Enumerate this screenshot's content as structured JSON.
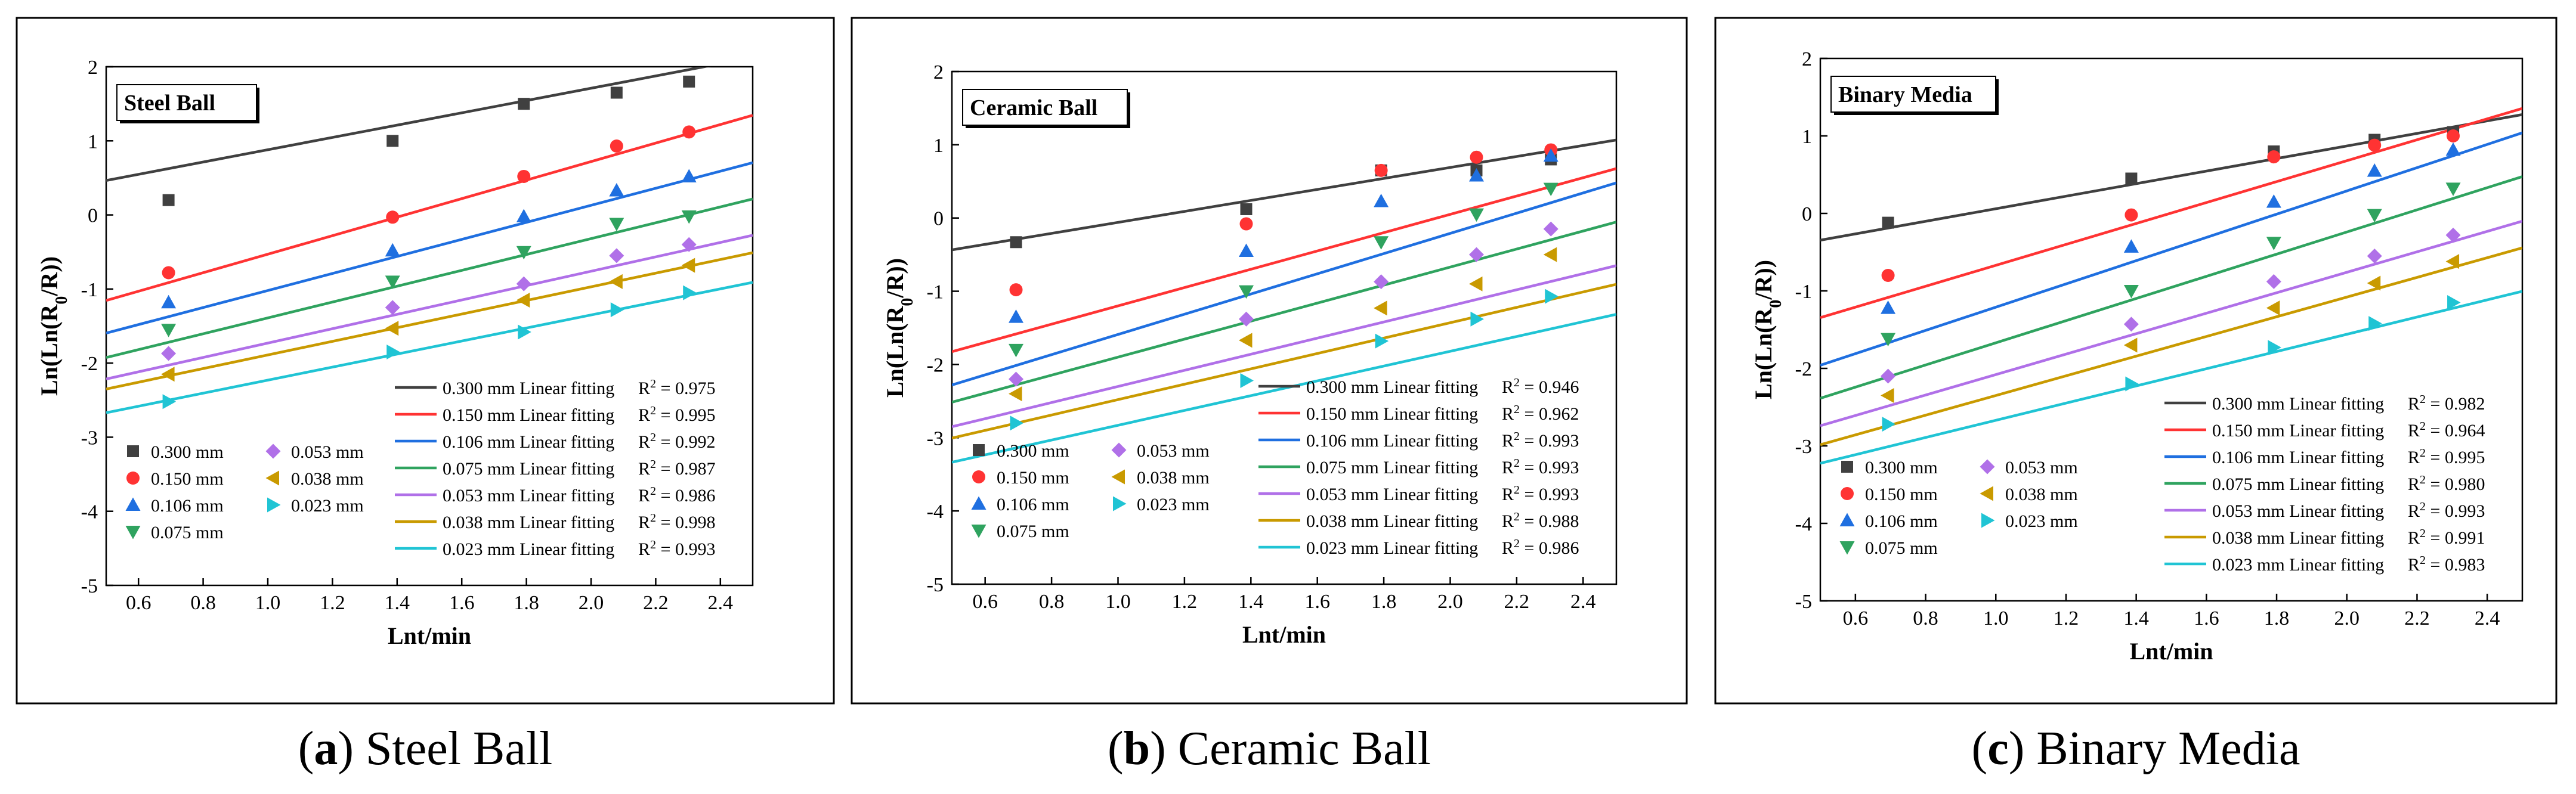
{
  "figure": {
    "panels_caption": [
      {
        "letter": "a",
        "text": " Steel Ball"
      },
      {
        "letter": "b",
        "text": " Ceramic Ball"
      },
      {
        "letter": "c",
        "text": " Binary Media"
      }
    ]
  },
  "colors": {
    "0.300": "#404040",
    "0.150": "#ff3333",
    "0.106": "#1f6fe0",
    "0.075": "#2fa35f",
    "0.053": "#b070e8",
    "0.038": "#c99a00",
    "0.023": "#20c4d4"
  },
  "chart_data": [
    {
      "type": "scatter",
      "title": "Steel Ball",
      "xlabel": "Lnt/min",
      "ylabel": "Ln(Ln(R0/R))",
      "xlim": [
        0.5,
        2.5
      ],
      "ylim": [
        -5,
        2
      ],
      "xticks": [
        "0.6",
        "0.8",
        "1.0",
        "1.2",
        "1.4",
        "1.6",
        "1.8",
        "2.0",
        "2.2",
        "2.4"
      ],
      "yticks": [
        "2",
        "1",
        "0",
        "-1",
        "-2",
        "-3",
        "-4",
        "-5"
      ],
      "x": [
        0.693,
        1.386,
        1.792,
        2.079,
        2.303
      ],
      "series": [
        {
          "name": "0.300 mm",
          "marker": "square",
          "values": [
            0.2,
            1.0,
            1.5,
            1.65,
            1.8
          ],
          "fit": [
            0.05,
            0.83
          ],
          "r2": "0.975"
        },
        {
          "name": "0.150 mm",
          "marker": "circle",
          "values": [
            -0.78,
            -0.03,
            0.52,
            0.93,
            1.12
          ],
          "fit": [
            -1.78,
            1.25
          ],
          "r2": "0.995"
        },
        {
          "name": "0.106 mm",
          "marker": "triangle-up",
          "values": [
            -1.18,
            -0.48,
            -0.02,
            0.33,
            0.52
          ],
          "fit": [
            -2.17,
            1.15
          ],
          "r2": "0.992"
        },
        {
          "name": "0.075 mm",
          "marker": "triangle-down",
          "values": [
            -1.55,
            -0.9,
            -0.5,
            -0.12,
            -0.02
          ],
          "fit": [
            -2.46,
            1.07
          ],
          "r2": "0.987"
        },
        {
          "name": "0.053 mm",
          "marker": "diamond",
          "values": [
            -1.87,
            -1.25,
            -0.93,
            -0.55,
            -0.4
          ],
          "fit": [
            -2.7,
            0.97
          ],
          "r2": "0.986"
        },
        {
          "name": "0.038 mm",
          "marker": "triangle-left",
          "values": [
            -2.15,
            -1.53,
            -1.15,
            -0.9,
            -0.68
          ],
          "fit": [
            -2.81,
            0.92
          ],
          "r2": "0.998"
        },
        {
          "name": "0.023 mm",
          "marker": "triangle-right",
          "values": [
            -2.52,
            -1.85,
            -1.58,
            -1.28,
            -1.05
          ],
          "fit": [
            -3.11,
            0.88
          ],
          "r2": "0.993"
        }
      ],
      "legend_title_suffix": " Linear fitting"
    },
    {
      "type": "scatter",
      "title": "Ceramic Ball",
      "xlabel": "Lnt/min",
      "ylabel": "Ln(Ln(R0/R))",
      "xlim": [
        0.5,
        2.5
      ],
      "ylim": [
        -5,
        2
      ],
      "xticks": [
        "0.6",
        "0.8",
        "1.0",
        "1.2",
        "1.4",
        "1.6",
        "1.8",
        "2.0",
        "2.2",
        "2.4"
      ],
      "yticks": [
        "2",
        "1",
        "0",
        "-1",
        "-2",
        "-3",
        "-4",
        "-5"
      ],
      "x": [
        0.693,
        1.386,
        1.792,
        2.079,
        2.303
      ],
      "series": [
        {
          "name": "0.300 mm",
          "marker": "square",
          "values": [
            -0.33,
            0.12,
            0.65,
            0.65,
            0.8
          ],
          "fit": [
            -0.81,
            0.75
          ],
          "r2": "0.946"
        },
        {
          "name": "0.150 mm",
          "marker": "circle",
          "values": [
            -0.98,
            -0.08,
            0.65,
            0.83,
            0.93
          ],
          "fit": [
            -2.45,
            1.25
          ],
          "r2": "0.962"
        },
        {
          "name": "0.106 mm",
          "marker": "triangle-up",
          "values": [
            -1.35,
            -0.45,
            0.23,
            0.58,
            0.85
          ],
          "fit": [
            -2.97,
            1.38
          ],
          "r2": "0.993"
        },
        {
          "name": "0.075 mm",
          "marker": "triangle-down",
          "values": [
            -1.8,
            -1.0,
            -0.33,
            0.05,
            0.4
          ],
          "fit": [
            -3.13,
            1.23
          ],
          "r2": "0.993"
        },
        {
          "name": "0.053 mm",
          "marker": "diamond",
          "values": [
            -2.2,
            -1.38,
            -0.87,
            -0.5,
            -0.15
          ],
          "fit": [
            -3.4,
            1.1
          ],
          "r2": "0.993"
        },
        {
          "name": "0.038 mm",
          "marker": "triangle-left",
          "values": [
            -2.4,
            -1.67,
            -1.23,
            -0.9,
            -0.5
          ],
          "fit": [
            -3.53,
            1.05
          ],
          "r2": "0.988"
        },
        {
          "name": "0.023 mm",
          "marker": "triangle-right",
          "values": [
            -2.8,
            -2.22,
            -1.68,
            -1.38,
            -1.07
          ],
          "fit": [
            -3.84,
            1.01
          ],
          "r2": "0.986"
        }
      ],
      "legend_title_suffix": " Linear fitting"
    },
    {
      "type": "scatter",
      "title": "Binary Media",
      "xlabel": "Lnt/min",
      "ylabel": "Ln(Ln(R0/R))",
      "xlim": [
        0.5,
        2.5
      ],
      "ylim": [
        -5,
        2
      ],
      "xticks": [
        "0.6",
        "0.8",
        "1.0",
        "1.2",
        "1.4",
        "1.6",
        "1.8",
        "2.0",
        "2.2",
        "2.4"
      ],
      "yticks": [
        "2",
        "1",
        "0",
        "-1",
        "-2",
        "-3",
        "-4",
        "-5"
      ],
      "x": [
        0.693,
        1.386,
        1.792,
        2.079,
        2.303
      ],
      "series": [
        {
          "name": "0.300 mm",
          "marker": "square",
          "values": [
            -0.12,
            0.45,
            0.8,
            0.95,
            1.05
          ],
          "fit": [
            -0.75,
            0.81
          ],
          "r2": "0.982"
        },
        {
          "name": "0.150 mm",
          "marker": "circle",
          "values": [
            -0.8,
            -0.02,
            0.73,
            0.88,
            1.0
          ],
          "fit": [
            -2.02,
            1.35
          ],
          "r2": "0.964"
        },
        {
          "name": "0.106 mm",
          "marker": "triangle-up",
          "values": [
            -1.22,
            -0.43,
            0.15,
            0.55,
            0.82
          ],
          "fit": [
            -2.71,
            1.5
          ],
          "r2": "0.995"
        },
        {
          "name": "0.075 mm",
          "marker": "triangle-down",
          "values": [
            -1.62,
            -1.0,
            -0.38,
            -0.02,
            0.32
          ],
          "fit": [
            -3.1,
            1.43
          ],
          "r2": "0.980"
        },
        {
          "name": "0.053 mm",
          "marker": "diamond",
          "values": [
            -2.1,
            -1.43,
            -0.88,
            -0.55,
            -0.28
          ],
          "fit": [
            -3.4,
            1.32
          ],
          "r2": "0.993"
        },
        {
          "name": "0.038 mm",
          "marker": "triangle-left",
          "values": [
            -2.35,
            -1.7,
            -1.22,
            -0.9,
            -0.62
          ],
          "fit": [
            -3.62,
            1.27
          ],
          "r2": "0.991"
        },
        {
          "name": "0.023 mm",
          "marker": "triangle-right",
          "values": [
            -2.72,
            -2.2,
            -1.73,
            -1.42,
            -1.15
          ],
          "fit": [
            -3.78,
            1.11
          ],
          "r2": "0.983"
        }
      ],
      "legend_title_suffix": " Linear fitting"
    }
  ]
}
